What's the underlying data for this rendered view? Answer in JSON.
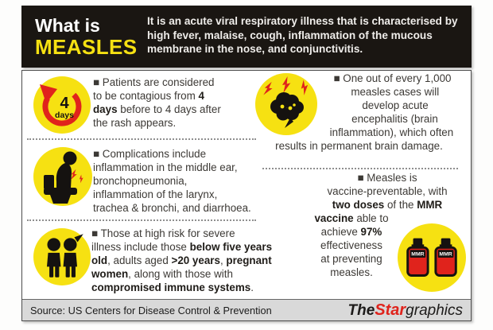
{
  "header": {
    "title_line1": "What is",
    "title_line2": "MEASLES",
    "description": "It is an acute viral respiratory illness that is characterised by high fever, malaise, cough, inflammation of the mucous membrane in the nose, and conjunctivitis."
  },
  "sections": {
    "contagious": {
      "icon": "cycle-4-days-icon",
      "icon_number": "4",
      "icon_unit": "days",
      "text": [
        {
          "t": "■ Patients are considered",
          "b": false
        },
        {
          "br": true
        },
        {
          "t": "to be contagious from ",
          "b": false
        },
        {
          "t": "4",
          "b": true
        },
        {
          "br": true
        },
        {
          "t": "days",
          "b": true
        },
        {
          "t": " before to 4 days after",
          "b": false
        },
        {
          "br": true
        },
        {
          "t": "the rash appears.",
          "b": false
        }
      ]
    },
    "complications": {
      "icon": "toilet-illness-icon",
      "text": [
        {
          "t": "■ Complications include",
          "b": false
        },
        {
          "br": true
        },
        {
          "t": "inflammation in the middle ear,",
          "b": false
        },
        {
          "br": true
        },
        {
          "t": "bronchopneumonia,",
          "b": false
        },
        {
          "br": true
        },
        {
          "t": "inflammation of the larynx,",
          "b": false
        },
        {
          "br": true
        },
        {
          "t": "trachea & bronchi, and diarrhoea.",
          "b": false
        }
      ]
    },
    "high_risk": {
      "icon": "children-icon",
      "text": [
        {
          "t": "■ Those at high risk for severe",
          "b": false
        },
        {
          "br": true
        },
        {
          "t": "illness include those ",
          "b": false
        },
        {
          "t": "below five years",
          "b": true
        },
        {
          "br": true
        },
        {
          "t": "old",
          "b": true
        },
        {
          "t": ", adults aged ",
          "b": false
        },
        {
          "t": ">20 years",
          "b": true
        },
        {
          "t": ", ",
          "b": false
        },
        {
          "t": "pregnant",
          "b": true
        },
        {
          "br": true
        },
        {
          "t": "women",
          "b": true
        },
        {
          "t": ", along with those with",
          "b": false
        },
        {
          "br": true
        },
        {
          "t": "compromised immune systems",
          "b": true
        },
        {
          "t": ".",
          "b": false
        }
      ]
    },
    "encephalitis": {
      "icon": "brain-lightning-icon",
      "text": [
        {
          "t": "■ One out of every 1,000",
          "b": false
        },
        {
          "br": true
        },
        {
          "t": "measles cases will",
          "b": false
        },
        {
          "br": true
        },
        {
          "t": "develop acute",
          "b": false
        },
        {
          "br": true
        },
        {
          "t": "encephalitis (brain",
          "b": false
        },
        {
          "br": true
        },
        {
          "t": "inflammation), which often",
          "b": false
        },
        {
          "br": true
        },
        {
          "t": "results in permanent brain damage.",
          "b": false
        }
      ]
    },
    "vaccine": {
      "icon": "mmr-vaccine-icon",
      "vial_label": "MMR",
      "text": [
        {
          "t": "■ Measles is",
          "b": false
        },
        {
          "br": true
        },
        {
          "t": "vaccine-preventable, with",
          "b": false
        },
        {
          "br": true
        },
        {
          "t": "two doses",
          "b": true
        },
        {
          "t": " of the ",
          "b": false
        },
        {
          "t": "MMR",
          "b": true
        },
        {
          "br": true
        },
        {
          "t": "vaccine",
          "b": true
        },
        {
          "t": " able to",
          "b": false
        },
        {
          "br": true
        },
        {
          "t": "achieve ",
          "b": false
        },
        {
          "t": "97%",
          "b": true
        },
        {
          "br": true
        },
        {
          "t": "effectiveness",
          "b": false
        },
        {
          "br": true
        },
        {
          "t": "at preventing",
          "b": false
        },
        {
          "br": true
        },
        {
          "t": "measles.",
          "b": false
        }
      ]
    }
  },
  "footer": {
    "source": "Source: US Centers for Disease Control & Prevention",
    "logo": {
      "the": "The",
      "star": "Star",
      "graphics": "graphics"
    }
  },
  "colors": {
    "yellow": "#F6E112",
    "red": "#E0231C",
    "black": "#1A1612",
    "footer_gray": "#D9D9D9",
    "text": "#3C3935",
    "text_bold": "#1F1C18",
    "border": "#4F4F4F"
  }
}
